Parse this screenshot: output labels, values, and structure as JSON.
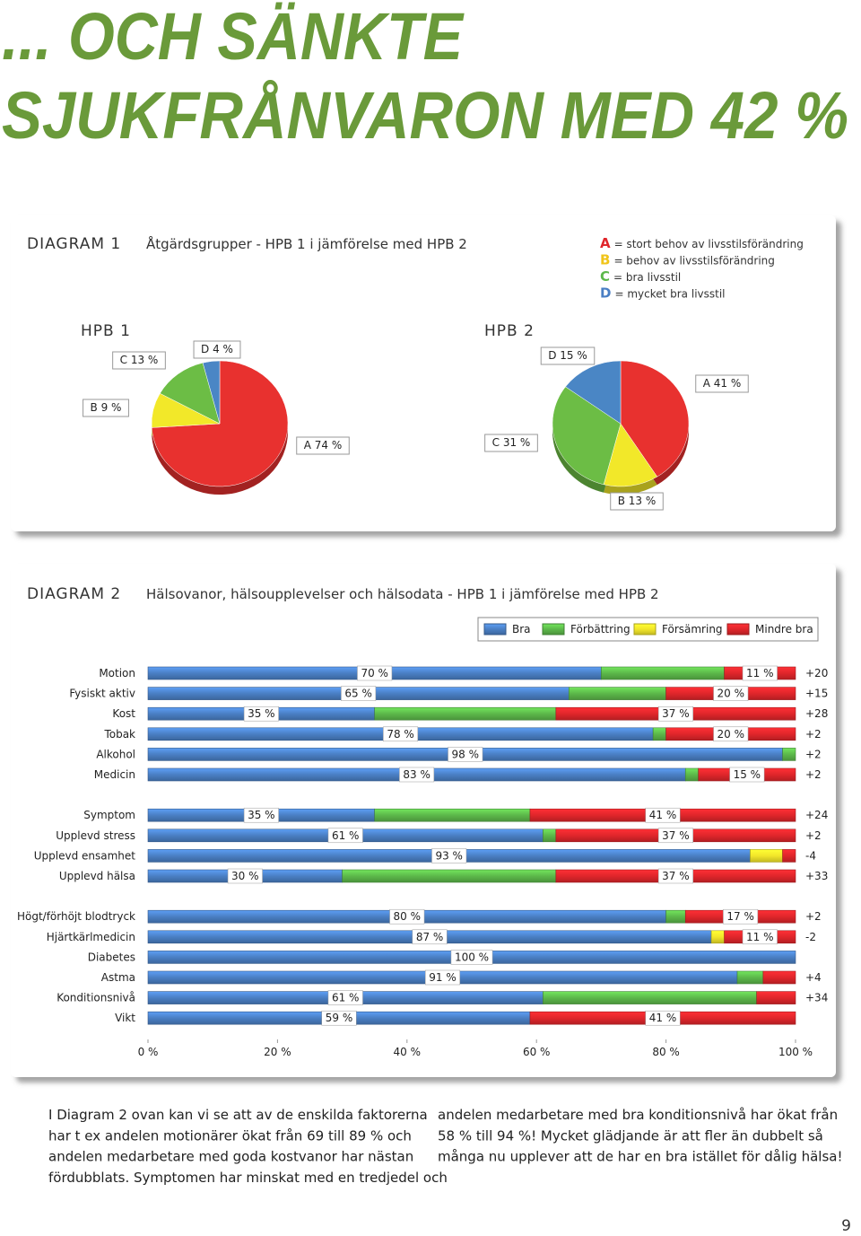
{
  "title": [
    "... OCH SÄNKTE",
    "SJUKFRÅNVARON MED 42 %"
  ],
  "diagram1": {
    "label": "DIAGRAM 1",
    "caption": "Åtgärdsgrupper - HPB 1 i jämförelse med HPB 2",
    "legend": [
      {
        "letter": "A",
        "text": "= stort behov av livsstilsförändring",
        "color": "#e0262b"
      },
      {
        "letter": "B",
        "text": "= behov av livsstilsförändring",
        "color": "#f0c419"
      },
      {
        "letter": "C",
        "text": "= bra livsstil",
        "color": "#5cb84a"
      },
      {
        "letter": "D",
        "text": "= mycket bra livsstil",
        "color": "#4a7fc4"
      }
    ]
  },
  "diagram2": {
    "label": "DIAGRAM 2",
    "caption": "Hälsovanor, hälsoupplevelser och hälsodata - HPB 1 i jämförelse med HPB 2"
  },
  "chart_data": [
    {
      "type": "pie",
      "title": "HPB 1",
      "categories": [
        "A",
        "B",
        "C",
        "D"
      ],
      "values": [
        74,
        9,
        13,
        4
      ],
      "value_labels": [
        "A 74 %",
        "B 9 %",
        "C 13 %",
        "D 4 %"
      ],
      "colors": [
        "#e8312f",
        "#f2e829",
        "#6cbd45",
        "#4a86c5"
      ]
    },
    {
      "type": "pie",
      "title": "HPB 2",
      "categories": [
        "A",
        "B",
        "C",
        "D"
      ],
      "values": [
        41,
        13,
        31,
        15
      ],
      "value_labels": [
        "A 41 %",
        "B 13 %",
        "C 31 %",
        "D 15 %"
      ],
      "colors": [
        "#e8312f",
        "#f2e829",
        "#6cbd45",
        "#4a86c5"
      ]
    },
    {
      "type": "bar",
      "orientation": "horizontal",
      "stacked": true,
      "categories": [
        "Motion",
        "Fysiskt aktiv",
        "Kost",
        "Tobak",
        "Alkohol",
        "Medicin",
        null,
        "Symptom",
        "Upplevd stress",
        "Upplevd ensamhet",
        "Upplevd hälsa",
        null,
        "Högt/förhöjt blodtryck",
        "Hjärtkärlmedicin",
        "Diabetes",
        "Astma",
        "Konditionsnivå",
        "Vikt"
      ],
      "series": [
        {
          "name": "Bra",
          "color": "#4a7fc4",
          "values": [
            70,
            65,
            35,
            78,
            98,
            83,
            null,
            35,
            61,
            93,
            30,
            null,
            80,
            87,
            100,
            91,
            61,
            59
          ],
          "value_labels": [
            "70 %",
            "65 %",
            "35 %",
            "78 %",
            "98 %",
            "83 %",
            null,
            "35 %",
            "61 %",
            "93 %",
            "30 %",
            null,
            "80 %",
            "87 %",
            "100 %",
            "91 %",
            "61 %",
            "59 %"
          ]
        },
        {
          "name": "Förbättring",
          "color": "#5cb84a",
          "values": [
            19,
            15,
            28,
            2,
            2,
            2,
            null,
            24,
            2,
            null,
            33,
            null,
            3,
            null,
            null,
            4,
            33,
            null
          ]
        },
        {
          "name": "Försämring",
          "color": "#f2e62a",
          "values": [
            null,
            null,
            null,
            null,
            null,
            null,
            null,
            null,
            null,
            5,
            null,
            null,
            null,
            2,
            null,
            null,
            null,
            null
          ]
        },
        {
          "name": "Mindre bra",
          "color": "#e0262b",
          "values": [
            11,
            20,
            37,
            20,
            null,
            15,
            null,
            41,
            37,
            2,
            37,
            null,
            17,
            11,
            null,
            5,
            6,
            41
          ],
          "value_labels": [
            "11 %",
            "20 %",
            "37 %",
            "20 %",
            null,
            "15 %",
            null,
            "41 %",
            "37 %",
            null,
            "37 %",
            null,
            "17 %",
            "11 %",
            null,
            null,
            null,
            "41 %"
          ]
        }
      ],
      "changes": [
        "+20",
        "+15",
        "+28",
        "+2",
        "+2",
        "+2",
        null,
        "+24",
        "+2",
        "-4",
        "+33",
        null,
        "+2",
        "-2",
        null,
        "+4",
        "+34",
        null
      ],
      "xlim": [
        0,
        100
      ],
      "xticks": [
        {
          "value": 0,
          "label": "0 %"
        },
        {
          "value": 20,
          "label": "20 %"
        },
        {
          "value": 40,
          "label": "40 %"
        },
        {
          "value": 60,
          "label": "60 %"
        },
        {
          "value": 80,
          "label": "80 %"
        },
        {
          "value": 100,
          "label": "100 %"
        }
      ]
    }
  ],
  "body": {
    "left": [
      "I Diagram 2 ovan kan vi se att av de enskilda faktorerna",
      "har t ex andelen motionärer ökat från 69 till 89 % och",
      "andelen medarbetare med goda kostvanor har nästan",
      "fördubblats. Symptomen har minskat med en tredjedel och"
    ],
    "right": [
      "andelen medarbetare med bra konditionsnivå har ökat från",
      "58 % till 94 %! Mycket glädjande är att fler än dubbelt så",
      "många nu upplever att de har en bra istället för dålig hälsa!"
    ]
  },
  "page_number": "9"
}
